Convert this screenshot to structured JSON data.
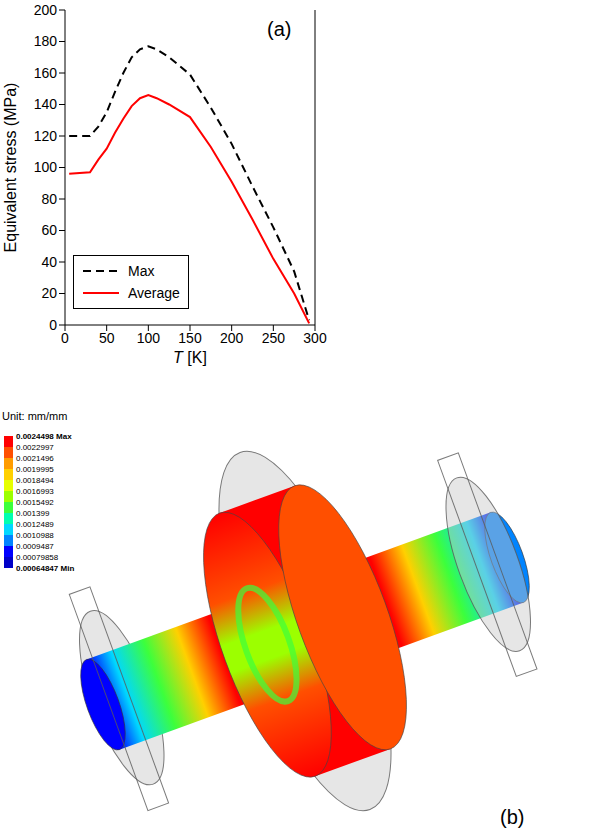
{
  "chart_data": [
    {
      "type": "line",
      "annotation": "(a)",
      "x_label": "T [K]",
      "y_label": "Equivalent stress (MPa)",
      "x": [
        5,
        30,
        40,
        50,
        60,
        70,
        80,
        90,
        100,
        110,
        125,
        150,
        175,
        200,
        225,
        250,
        275,
        293
      ],
      "series": [
        {
          "name": "Max",
          "color": "#000000",
          "line_style": "dashed",
          "values": [
            120,
            120,
            126,
            135,
            148,
            160,
            170,
            175,
            177,
            175,
            170,
            159,
            138,
            115,
            88,
            62,
            34,
            3
          ]
        },
        {
          "name": "Average",
          "color": "#ff0000",
          "line_style": "solid",
          "values": [
            96,
            97,
            105,
            112,
            122,
            131,
            139,
            144,
            146,
            144,
            140,
            132,
            113,
            91,
            67,
            42,
            20,
            1
          ]
        }
      ],
      "xlim": [
        0,
        300
      ],
      "xticks": [
        0,
        50,
        100,
        150,
        200,
        250,
        300
      ],
      "ylim": [
        0,
        200
      ],
      "yticks": [
        0,
        20,
        40,
        60,
        80,
        100,
        120,
        140,
        160,
        180,
        200
      ],
      "grid": false,
      "legend": "bottom-left"
    },
    {
      "type": "contour",
      "annotation": "(b)",
      "colorbar": {
        "title": "Unit: mm/mm",
        "range": [
          0.00064847,
          0.0024498
        ],
        "ticks": [
          {
            "value": 0.0024498,
            "label": "0.0024498 Max"
          },
          0.0022997,
          0.0021496,
          0.0019995,
          0.0018494,
          0.0016993,
          0.0015492,
          0.001399,
          0.0012489,
          0.0010988,
          0.0009487,
          0.00079858,
          {
            "value": 0.00064847,
            "label": "0.00064847 Min"
          }
        ],
        "colors": [
          "#ff0000",
          "#ff4f00",
          "#ff9c00",
          "#ffd000",
          "#e6ff00",
          "#9cff00",
          "#3cff3c",
          "#00ffb0",
          "#00d8ff",
          "#0084ff",
          "#0000ff",
          "#0000c8"
        ]
      }
    }
  ]
}
